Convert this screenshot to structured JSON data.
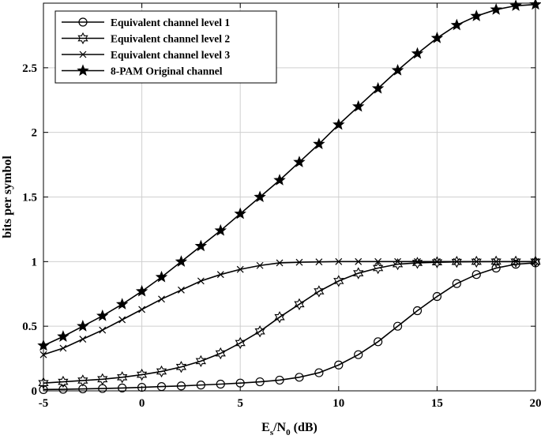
{
  "chart_data": {
    "type": "line",
    "xlabel": {
      "main": "E",
      "sub1": "s",
      "mid": "/N",
      "sub2": "0",
      "tail": " (dB)"
    },
    "ylabel": "bits per symbol",
    "xlim": [
      -5,
      20
    ],
    "ylim": [
      0,
      3
    ],
    "xticks": [
      -5,
      0,
      5,
      10,
      15,
      20
    ],
    "yticks": [
      0,
      0.5,
      1,
      1.5,
      2,
      2.5
    ],
    "xtick_labels": [
      "-5",
      "0",
      "5",
      "10",
      "15",
      "20"
    ],
    "ytick_labels": [
      "0",
      "0.5",
      "1",
      "1.5",
      "2",
      "2.5"
    ],
    "grid": true,
    "legend_position": "top-left",
    "x": [
      -5,
      -4,
      -3,
      -2,
      -1,
      0,
      1,
      2,
      3,
      4,
      5,
      6,
      7,
      8,
      9,
      10,
      11,
      12,
      13,
      14,
      15,
      16,
      17,
      18,
      19,
      20
    ],
    "series": [
      {
        "name": "Equivalent channel level 1",
        "marker": "circle",
        "values": [
          0.01,
          0.012,
          0.015,
          0.018,
          0.022,
          0.027,
          0.033,
          0.038,
          0.045,
          0.052,
          0.06,
          0.07,
          0.083,
          0.105,
          0.14,
          0.2,
          0.28,
          0.38,
          0.5,
          0.62,
          0.73,
          0.83,
          0.9,
          0.95,
          0.98,
          0.99
        ]
      },
      {
        "name": "Equivalent channel level 2",
        "marker": "hexagram",
        "values": [
          0.06,
          0.07,
          0.08,
          0.09,
          0.105,
          0.125,
          0.15,
          0.185,
          0.23,
          0.29,
          0.37,
          0.46,
          0.57,
          0.67,
          0.77,
          0.85,
          0.91,
          0.95,
          0.98,
          0.99,
          0.995,
          0.998,
          0.999,
          1.0,
          1.0,
          1.0
        ]
      },
      {
        "name": "Equivalent channel level 3",
        "marker": "x",
        "values": [
          0.28,
          0.33,
          0.4,
          0.47,
          0.55,
          0.63,
          0.71,
          0.78,
          0.85,
          0.9,
          0.94,
          0.97,
          0.99,
          0.995,
          0.998,
          1.0,
          1.0,
          1.0,
          1.0,
          1.0,
          1.0,
          1.0,
          1.0,
          1.0,
          1.0,
          1.0
        ]
      },
      {
        "name": "8-PAM Original channel",
        "marker": "pentagram",
        "values": [
          0.35,
          0.42,
          0.5,
          0.58,
          0.67,
          0.77,
          0.88,
          1.0,
          1.12,
          1.24,
          1.37,
          1.5,
          1.63,
          1.77,
          1.91,
          2.06,
          2.2,
          2.34,
          2.48,
          2.61,
          2.73,
          2.83,
          2.9,
          2.95,
          2.98,
          2.99
        ]
      }
    ]
  }
}
